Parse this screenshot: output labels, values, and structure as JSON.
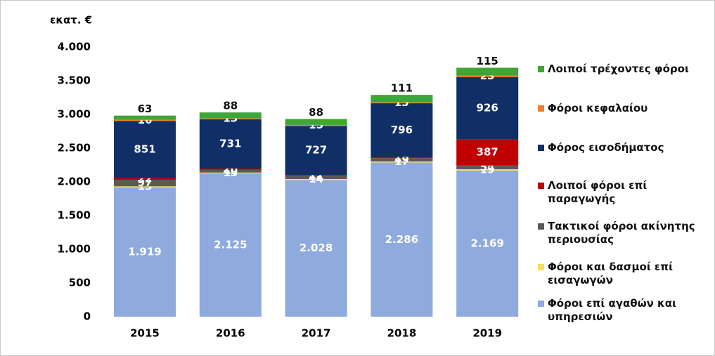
{
  "chart_data": {
    "type": "stacked_bar",
    "y_unit_label": "εκατ. €",
    "categories": [
      "2015",
      "2016",
      "2017",
      "2018",
      "2019"
    ],
    "series": [
      {
        "name": "Φόροι επί αγαθών και υπηρεσιών",
        "color": "#8faadc",
        "values": [
          1919,
          2125,
          2028,
          2286,
          2169
        ],
        "value_labels": [
          "1.919",
          "2.125",
          "2.028",
          "2.286",
          "2.169"
        ]
      },
      {
        "name": "Φόροι και δασμοί επί εισαγωγών",
        "color": "#f4de5c",
        "values": [
          15,
          13,
          14,
          17,
          19
        ]
      },
      {
        "name": "Τακτικοί φόροι ακίνητης περιουσίας",
        "color": "#595959",
        "values": [
          97,
          40,
          44,
          49,
          54
        ]
      },
      {
        "name": "Λοιποί φόροι επί παραγωγής",
        "color": "#c00000",
        "values": [
          22,
          20,
          17,
          18,
          387
        ]
      },
      {
        "name": "Φόρος εισοδήματος",
        "color": "#0f2f66",
        "values": [
          851,
          731,
          727,
          796,
          926
        ]
      },
      {
        "name": "Φόροι κεφαλαίου",
        "color": "#ed7d31",
        "values": [
          16,
          13,
          15,
          13,
          23
        ]
      },
      {
        "name": "Λοιποί τρέχοντες φόροι",
        "color": "#3fa535",
        "values": [
          63,
          88,
          88,
          111,
          115
        ]
      }
    ],
    "ylim": [
      0,
      4000
    ],
    "yticks": [
      0,
      500,
      {
        "value": 1000,
        "label": "1.000"
      },
      {
        "value": 1500,
        "label": "1.500"
      },
      {
        "value": 2000,
        "label": "2.000"
      },
      {
        "value": 2500,
        "label": "2.500"
      },
      {
        "value": 3000,
        "label": "3.000"
      },
      {
        "value": 3500,
        "label": "3.500"
      },
      {
        "value": 4000,
        "label": "4.000"
      }
    ],
    "legend": "right",
    "grid": false
  }
}
